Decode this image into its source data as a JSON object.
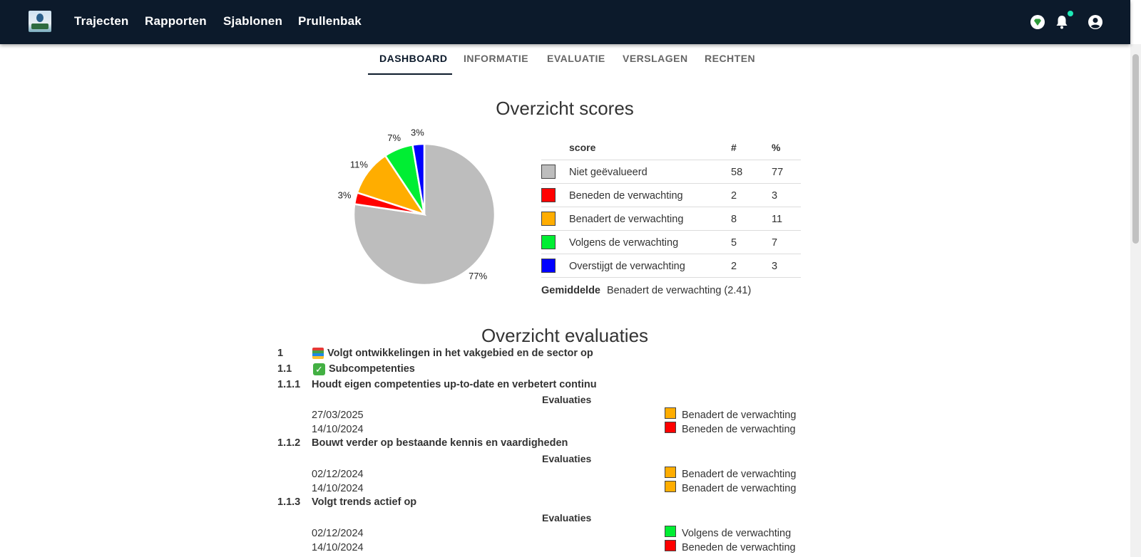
{
  "header": {
    "nav": [
      "Trajecten",
      "Rapporten",
      "Sjablonen",
      "Prullenbak"
    ]
  },
  "icons": [
    "logo",
    "diamond-icon",
    "bell-icon",
    "account-icon",
    "check-icon",
    "books-icon"
  ],
  "tabs": [
    "DASHBOARD",
    "INFORMATIE",
    "EVALUATIE",
    "VERSLAGEN",
    "RECHTEN"
  ],
  "active_tab": "DASHBOARD",
  "scores": {
    "title": "Overzicht scores",
    "columns": [
      "score",
      "#",
      "%"
    ],
    "rows": [
      {
        "label": "Niet geëvalueerd",
        "count": "58",
        "pct": "77",
        "color": "#bdbdbd"
      },
      {
        "label": "Beneden de verwachting",
        "count": "2",
        "pct": "3",
        "color": "#ff0000"
      },
      {
        "label": "Benadert de verwachting",
        "count": "8",
        "pct": "11",
        "color": "#ffad00"
      },
      {
        "label": "Volgens de verwachting",
        "count": "5",
        "pct": "7",
        "color": "#00ee33"
      },
      {
        "label": "Overstijgt de verwachting",
        "count": "2",
        "pct": "3",
        "color": "#0000ff"
      }
    ],
    "average_label": "Gemiddelde",
    "average_value": "Benadert de verwachting (2.41)"
  },
  "chart_data": {
    "type": "pie",
    "categories": [
      "Niet geëvalueerd",
      "Beneden de verwachting",
      "Benadert de verwachting",
      "Volgens de verwachting",
      "Overstijgt de verwachting"
    ],
    "values": [
      58,
      2,
      8,
      5,
      2
    ],
    "labels": [
      "77%",
      "3%",
      "11%",
      "7%",
      "3%"
    ],
    "colors": [
      "#bdbdbd",
      "#ff0000",
      "#ffad00",
      "#00ee33",
      "#0000ff"
    ]
  },
  "evaluations": {
    "title": "Overzicht evaluaties",
    "competence": {
      "number": "1",
      "title": "Volgt ontwikkelingen in het vakgebied en de sector op"
    },
    "sub": {
      "number": "1.1",
      "title": "Subcompetenties"
    },
    "subheader": "Evaluaties",
    "items": [
      {
        "number": "1.1.1",
        "title": "Houdt eigen competenties up-to-date en verbetert continu",
        "entries": [
          {
            "date": "27/03/2025",
            "result": "Benadert de verwachting",
            "color": "#ffad00"
          },
          {
            "date": "14/10/2024",
            "result": "Beneden de verwachting",
            "color": "#ff0000"
          }
        ]
      },
      {
        "number": "1.1.2",
        "title": "Bouwt verder op bestaande kennis en vaardigheden",
        "entries": [
          {
            "date": "02/12/2024",
            "result": "Benadert de verwachting",
            "color": "#ffad00"
          },
          {
            "date": "14/10/2024",
            "result": "Benadert de verwachting",
            "color": "#ffad00"
          }
        ]
      },
      {
        "number": "1.1.3",
        "title": "Volgt trends actief op",
        "entries": [
          {
            "date": "02/12/2024",
            "result": "Volgens de verwachting",
            "color": "#00ee33"
          },
          {
            "date": "14/10/2024",
            "result": "Beneden de verwachting",
            "color": "#ff0000"
          }
        ]
      }
    ]
  }
}
